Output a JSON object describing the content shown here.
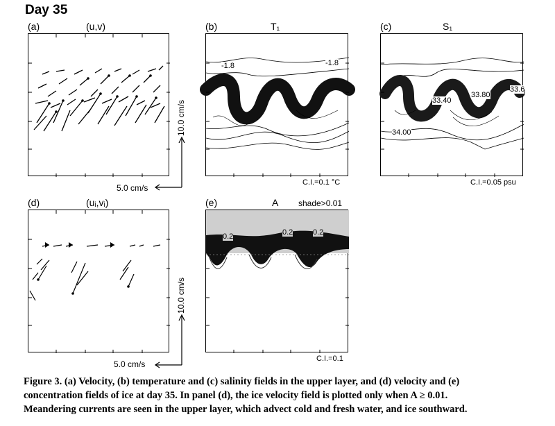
{
  "figure": {
    "day_title": "Day 35",
    "panels": {
      "a": {
        "label": "(a)",
        "title": "(u,v)",
        "vscale": "10.0 cm/s",
        "hscale": "5.0 cm/s"
      },
      "b": {
        "label": "(b)",
        "title": "T₁",
        "contour_labels": [
          "-1.8",
          "-1.8"
        ],
        "ci": "C.I.=0.1 °C"
      },
      "c": {
        "label": "(c)",
        "title": "S₁",
        "contour_labels": [
          "33.40",
          "33.80",
          "34.00",
          "33.6"
        ],
        "ci": "C.I.=0.05 psu"
      },
      "d": {
        "label": "(d)",
        "title": "(uᵢ,vᵢ)",
        "vscale": "10.0 cm/s",
        "hscale": "5.0 cm/s"
      },
      "e": {
        "label": "(e)",
        "title": "A",
        "shade_note": "shade>0.01",
        "contour_labels": [
          "0.2",
          "0.2",
          "0.2"
        ],
        "ci": "C.I.=0.1"
      }
    }
  },
  "caption": {
    "line1": "Figure 3.  (a) Velocity, (b) temperature and (c) salinity fields in the upper layer, and (d) velocity and (e)",
    "line2": "concentration fields of ice at day 35.  In panel (d), the ice velocity field is plotted only when A ≥ 0.01.",
    "line3": "Meandering currents are seen in the upper layer, which advect cold and fresh water, and ice southward."
  }
}
